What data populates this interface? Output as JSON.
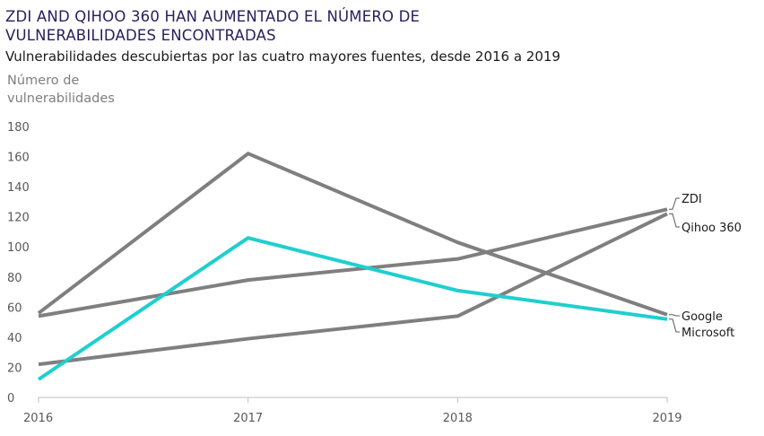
{
  "header": {
    "title": "ZDI AND QIHOO 360 HAN AUMENTADO EL NÚMERO DE VULNERABILIDADES ENCONTRADAS",
    "subtitle": "Vulnerabilidades descubiertas por las cuatro mayores fuentes, desde 2016 a 2019"
  },
  "chart_data": {
    "type": "line",
    "title": "ZDI AND QIHOO 360 HAN AUMENTADO EL NÚMERO DE VULNERABILIDADES ENCONTRADAS",
    "subtitle": "Vulnerabilidades descubiertas por las cuatro mayores fuentes, desde 2016 a 2019",
    "xlabel": "",
    "ylabel": "Número de vulnerabilidades",
    "x": [
      "2016",
      "2017",
      "2018",
      "2019"
    ],
    "ylim": [
      0,
      180
    ],
    "yticks": [
      0,
      20,
      40,
      60,
      80,
      100,
      120,
      140,
      160,
      180
    ],
    "grid": false,
    "legend": "inline-right",
    "series": [
      {
        "name": "ZDI",
        "values": [
          54,
          78,
          92,
          125
        ],
        "color": "#7f7f7f"
      },
      {
        "name": "Qihoo 360",
        "values": [
          22,
          39,
          54,
          122
        ],
        "color": "#7f7f7f"
      },
      {
        "name": "Google",
        "values": [
          56,
          162,
          103,
          55
        ],
        "color": "#7f7f7f"
      },
      {
        "name": "Microsoft",
        "values": [
          12,
          106,
          71,
          52
        ],
        "color": "#1fcfcf"
      }
    ]
  }
}
